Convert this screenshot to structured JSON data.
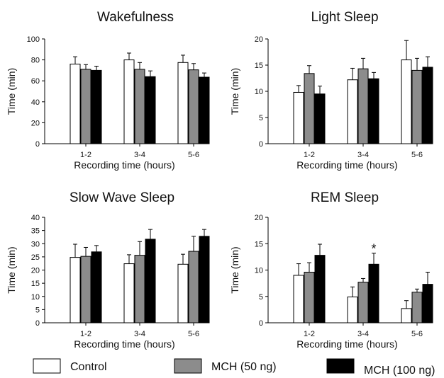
{
  "legend": [
    {
      "name": "Control",
      "color": "#ffffff"
    },
    {
      "name": "MCH (50 ng)",
      "color": "#8c8c8c"
    },
    {
      "name": "MCH (100 ng)",
      "color": "#000000"
    }
  ],
  "chart_data": [
    {
      "type": "bar",
      "title": "Wakefulness",
      "xlabel": "Recording time (hours)",
      "ylabel": "Time (min)",
      "ylim": [
        0,
        100
      ],
      "yticks": [
        0,
        20,
        40,
        60,
        80,
        100
      ],
      "categories": [
        "1-2",
        "3-4",
        "5-6"
      ],
      "series": [
        {
          "name": "Control",
          "values": [
            76,
            80,
            77.5
          ],
          "errors": [
            7,
            6.5,
            7
          ]
        },
        {
          "name": "MCH (50 ng)",
          "values": [
            71,
            71,
            70.5
          ],
          "errors": [
            4.5,
            6.5,
            6
          ]
        },
        {
          "name": "MCH (100 ng)",
          "values": [
            70,
            64,
            63.5
          ],
          "errors": [
            4,
            5.5,
            4
          ]
        }
      ],
      "annotations": []
    },
    {
      "type": "bar",
      "title": "Light Sleep",
      "xlabel": "Recording time (hours)",
      "ylabel": "Time (min)",
      "ylim": [
        0,
        20
      ],
      "yticks": [
        0,
        5,
        10,
        15,
        20
      ],
      "categories": [
        "1-2",
        "3-4",
        "5-6"
      ],
      "series": [
        {
          "name": "Control",
          "values": [
            9.8,
            12.2,
            16
          ],
          "errors": [
            1.3,
            2.2,
            3.7
          ]
        },
        {
          "name": "MCH (50 ng)",
          "values": [
            13.4,
            14.3,
            14
          ],
          "errors": [
            1.5,
            2,
            2.3
          ]
        },
        {
          "name": "MCH (100 ng)",
          "values": [
            9.5,
            12.4,
            14.6
          ],
          "errors": [
            1.5,
            1.2,
            2
          ]
        }
      ],
      "annotations": []
    },
    {
      "type": "bar",
      "title": "Slow Wave Sleep",
      "xlabel": "Recording time (hours)",
      "ylabel": "Time (min)",
      "ylim": [
        0,
        40
      ],
      "yticks": [
        0,
        5,
        10,
        15,
        20,
        25,
        30,
        35,
        40
      ],
      "categories": [
        "1-2",
        "3-4",
        "5-6"
      ],
      "series": [
        {
          "name": "Control",
          "values": [
            24.8,
            22.4,
            22.2
          ],
          "errors": [
            5,
            3.4,
            3.8
          ]
        },
        {
          "name": "MCH (50 ng)",
          "values": [
            25.2,
            25.6,
            27.1
          ],
          "errors": [
            3.4,
            5.2,
            5.7
          ]
        },
        {
          "name": "MCH (100 ng)",
          "values": [
            26.9,
            31.7,
            32.8
          ],
          "errors": [
            2.4,
            3.7,
            2.6
          ]
        }
      ],
      "annotations": []
    },
    {
      "type": "bar",
      "title": "REM Sleep",
      "xlabel": "Recording time (hours)",
      "ylabel": "Time (min)",
      "ylim": [
        0,
        20
      ],
      "yticks": [
        0,
        5,
        10,
        15,
        20
      ],
      "categories": [
        "1-2",
        "3-4",
        "5-6"
      ],
      "series": [
        {
          "name": "Control",
          "values": [
            9,
            4.9,
            2.7
          ],
          "errors": [
            2.2,
            1.9,
            1.5
          ]
        },
        {
          "name": "MCH (50 ng)",
          "values": [
            9.6,
            7.7,
            5.8
          ],
          "errors": [
            1.8,
            0.7,
            0.6
          ]
        },
        {
          "name": "MCH (100 ng)",
          "values": [
            12.8,
            11.1,
            7.3
          ],
          "errors": [
            2.1,
            2.1,
            2.3
          ]
        }
      ],
      "annotations": [
        {
          "text": "*",
          "category": "3-4",
          "series": "MCH (100 ng)"
        }
      ]
    }
  ]
}
